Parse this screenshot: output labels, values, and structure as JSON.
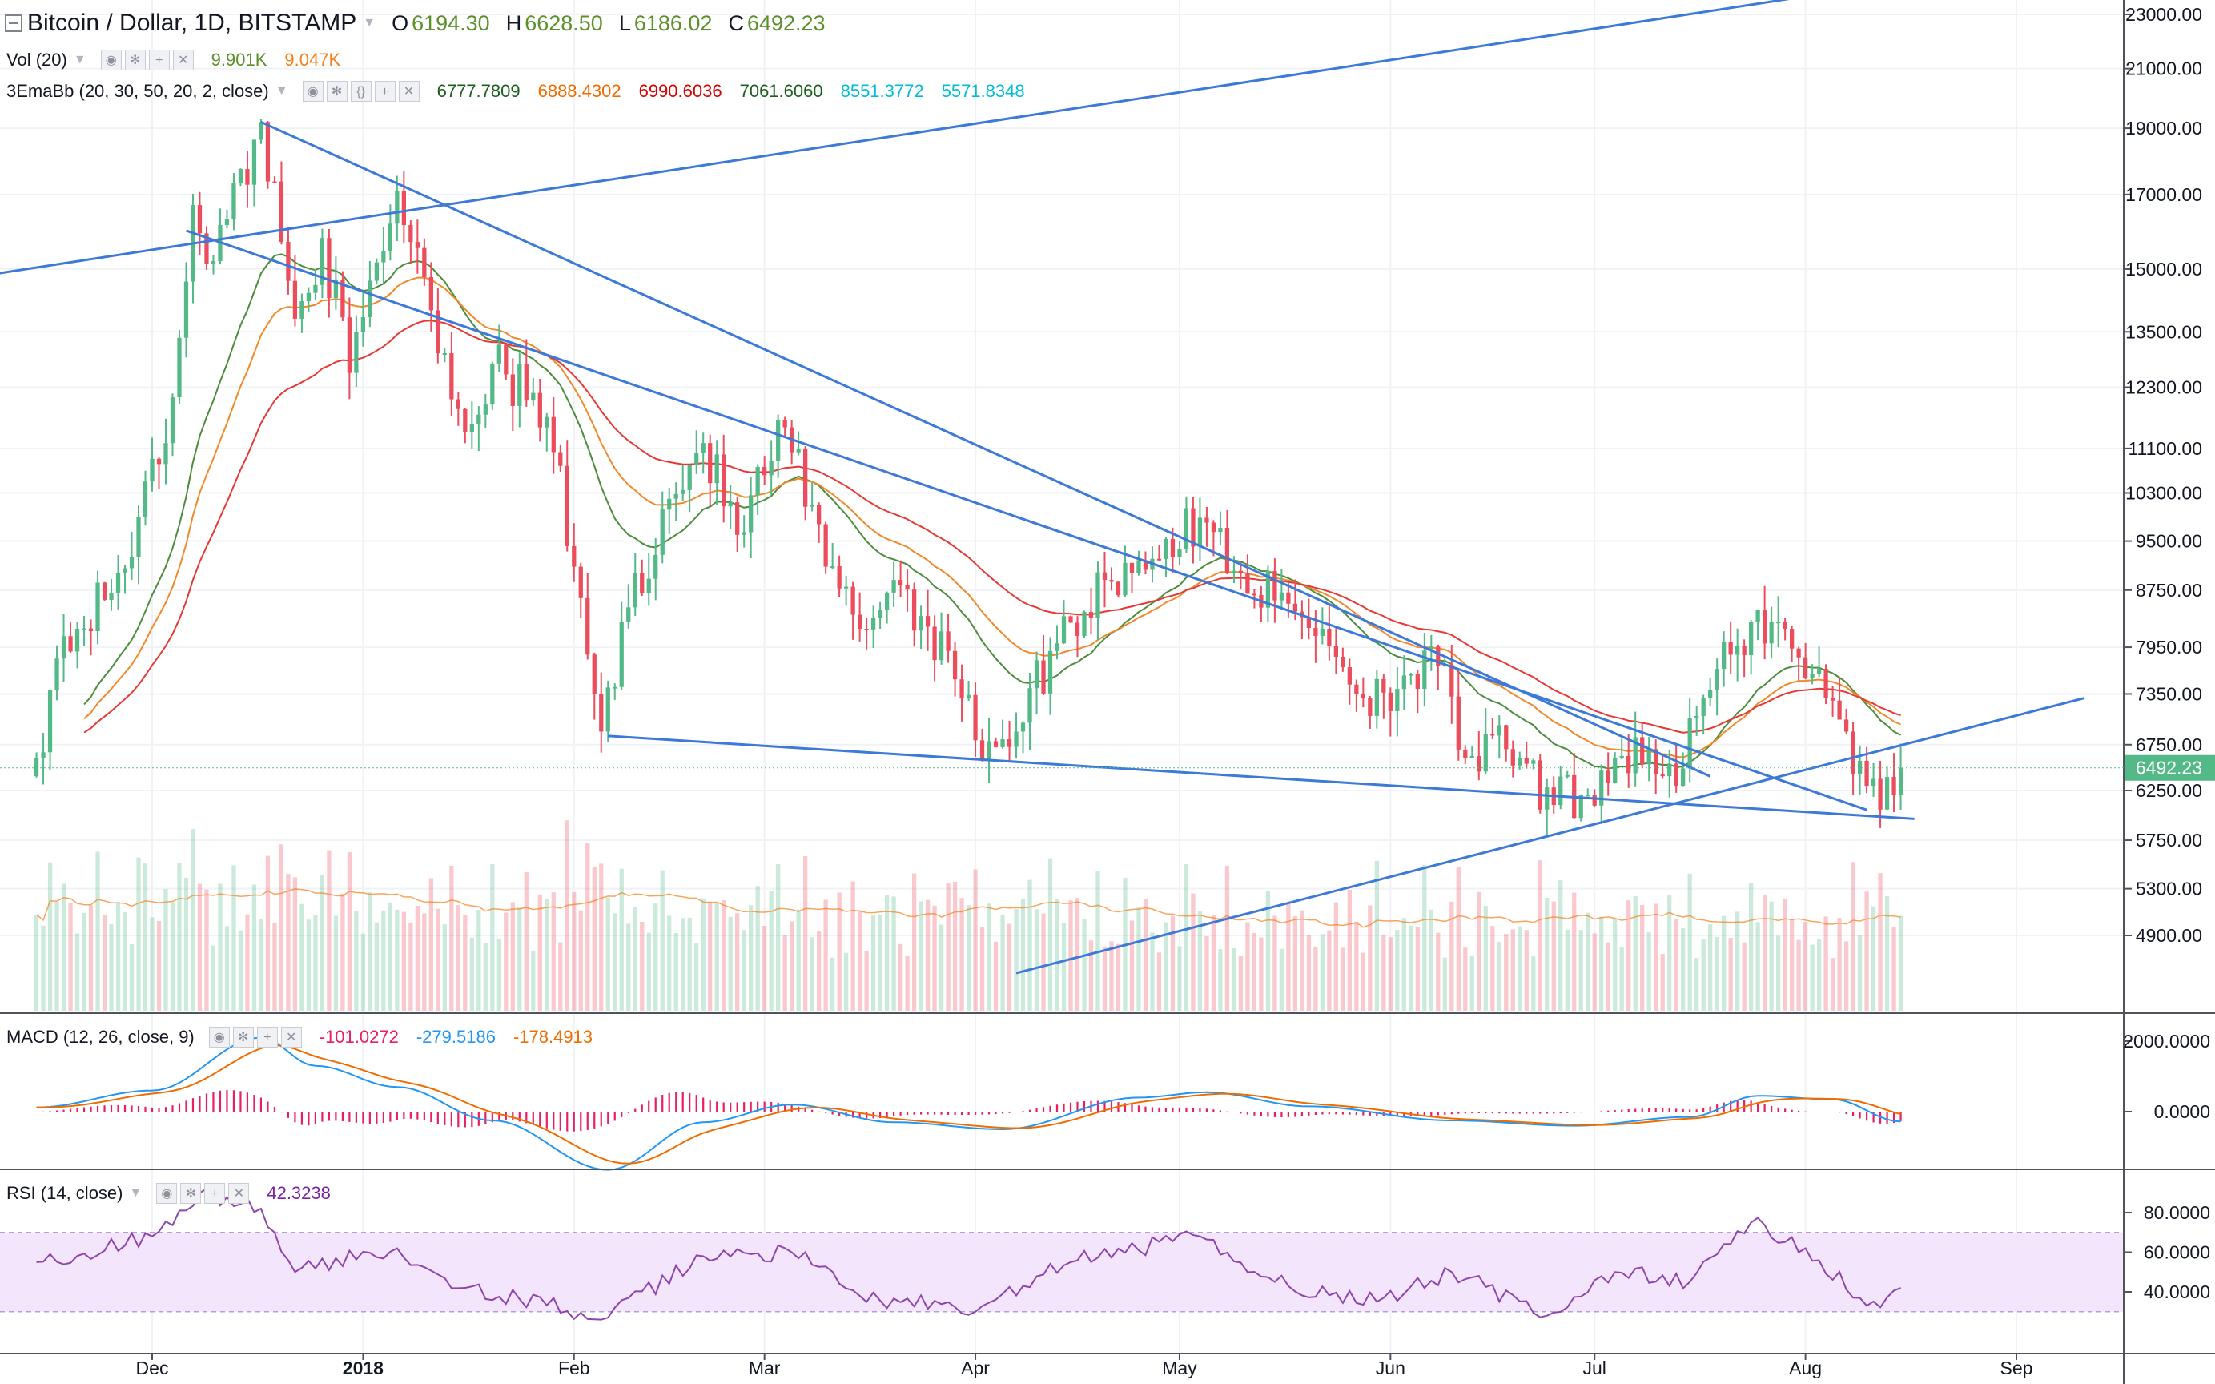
{
  "header": {
    "title": "Bitcoin / Dollar, 1D, BITSTAMP",
    "ohlc": [
      {
        "k": "O",
        "v": "6194.30"
      },
      {
        "k": "H",
        "v": "6628.50"
      },
      {
        "k": "L",
        "v": "6186.02"
      },
      {
        "k": "C",
        "v": "6492.23"
      }
    ]
  },
  "indicators": {
    "vol": {
      "label": "Vol (20)",
      "values": [
        {
          "text": "9.901K",
          "color": "#5d8f2a"
        },
        {
          "text": "9.047K",
          "color": "#f57f17"
        }
      ]
    },
    "ema": {
      "label": "3EmaBb (20, 30, 50, 20, 2, close)",
      "values": [
        {
          "text": "6777.7809",
          "color": "#1b5e20"
        },
        {
          "text": "6888.4302",
          "color": "#ef6c00"
        },
        {
          "text": "6990.6036",
          "color": "#d50000"
        },
        {
          "text": "7061.6060",
          "color": "#1b5e20"
        },
        {
          "text": "8551.3772",
          "color": "#00bcd4"
        },
        {
          "text": "5571.8348",
          "color": "#00bcd4"
        }
      ]
    },
    "macd": {
      "label": "MACD (12, 26, close, 9)",
      "values": [
        {
          "text": "-101.0272",
          "color": "#e91e63"
        },
        {
          "text": "-279.5186",
          "color": "#2196f3"
        },
        {
          "text": "-178.4913",
          "color": "#ef6c00"
        }
      ]
    },
    "rsi": {
      "label": "RSI (14, close)",
      "values": [
        {
          "text": "42.3238",
          "color": "#7b1fa2"
        }
      ]
    }
  },
  "colors": {
    "up": "#53b987",
    "down": "#eb4d5c",
    "trendline": "#3d79d6",
    "rsi_band": "#f3e5fc"
  },
  "icons": [
    "collapse-icon",
    "eye-icon",
    "gear-icon",
    "plus-icon",
    "close-icon",
    "chevron-down-icon"
  ],
  "chart_data": [
    {
      "type": "candlestick",
      "title": "Bitcoin / Dollar, 1D, BITSTAMP",
      "y_scale": "log",
      "ylim": [
        4500,
        23500
      ],
      "y_ticks": [
        "23000.00",
        "21000.00",
        "19000.00",
        "17000.00",
        "15000.00",
        "13500.00",
        "12300.00",
        "11100.00",
        "10300.00",
        "9500.00",
        "8750.00",
        "7950.00",
        "7350.00",
        "6750.00",
        "6250.00",
        "5750.00",
        "5300.00",
        "4900.00"
      ],
      "x_ticks": [
        "Dec",
        "2018",
        "Feb",
        "Mar",
        "Apr",
        "May",
        "Jun",
        "Jul",
        "Aug",
        "Sep"
      ],
      "last_price": "6492.23",
      "anchors": [
        {
          "d": "2017-11-14",
          "c": 6600
        },
        {
          "d": "2017-11-17",
          "c": 7800
        },
        {
          "d": "2017-11-20",
          "c": 8200
        },
        {
          "d": "2017-11-25",
          "c": 8700
        },
        {
          "d": "2017-11-29",
          "c": 9900
        },
        {
          "d": "2017-12-03",
          "c": 11200
        },
        {
          "d": "2017-12-07",
          "c": 16700
        },
        {
          "d": "2017-12-10",
          "c": 15200
        },
        {
          "d": "2017-12-17",
          "c": 19200
        },
        {
          "d": "2017-12-22",
          "c": 13800
        },
        {
          "d": "2017-12-26",
          "c": 15800
        },
        {
          "d": "2017-12-30",
          "c": 12600
        },
        {
          "d": "2018-01-06",
          "c": 17100
        },
        {
          "d": "2018-01-10",
          "c": 14800
        },
        {
          "d": "2018-01-16",
          "c": 11400
        },
        {
          "d": "2018-01-20",
          "c": 12800
        },
        {
          "d": "2018-01-28",
          "c": 11700
        },
        {
          "d": "2018-02-01",
          "c": 9100
        },
        {
          "d": "2018-02-05",
          "c": 6900
        },
        {
          "d": "2018-02-09",
          "c": 8500
        },
        {
          "d": "2018-02-15",
          "c": 10200
        },
        {
          "d": "2018-02-20",
          "c": 11200
        },
        {
          "d": "2018-02-25",
          "c": 9600
        },
        {
          "d": "2018-03-04",
          "c": 11500
        },
        {
          "d": "2018-03-10",
          "c": 9100
        },
        {
          "d": "2018-03-15",
          "c": 8200
        },
        {
          "d": "2018-03-20",
          "c": 8900
        },
        {
          "d": "2018-03-28",
          "c": 7900
        },
        {
          "d": "2018-04-01",
          "c": 6800
        },
        {
          "d": "2018-04-07",
          "c": 6900
        },
        {
          "d": "2018-04-12",
          "c": 7900
        },
        {
          "d": "2018-04-20",
          "c": 8900
        },
        {
          "d": "2018-04-25",
          "c": 9200
        },
        {
          "d": "2018-05-05",
          "c": 9800
        },
        {
          "d": "2018-05-10",
          "c": 9000
        },
        {
          "d": "2018-05-15",
          "c": 8600
        },
        {
          "d": "2018-05-22",
          "c": 8200
        },
        {
          "d": "2018-05-28",
          "c": 7300
        },
        {
          "d": "2018-06-04",
          "c": 7600
        },
        {
          "d": "2018-06-08",
          "c": 7700
        },
        {
          "d": "2018-06-12",
          "c": 6600
        },
        {
          "d": "2018-06-18",
          "c": 6700
        },
        {
          "d": "2018-06-25",
          "c": 6100
        },
        {
          "d": "2018-06-29",
          "c": 6200
        },
        {
          "d": "2018-07-04",
          "c": 6600
        },
        {
          "d": "2018-07-09",
          "c": 6700
        },
        {
          "d": "2018-07-13",
          "c": 6300
        },
        {
          "d": "2018-07-17",
          "c": 7300
        },
        {
          "d": "2018-07-24",
          "c": 8300
        },
        {
          "d": "2018-07-29",
          "c": 8200
        },
        {
          "d": "2018-08-02",
          "c": 7600
        },
        {
          "d": "2018-08-07",
          "c": 6900
        },
        {
          "d": "2018-08-10",
          "c": 6300
        },
        {
          "d": "2018-08-14",
          "c": 6200
        },
        {
          "d": "2018-08-15",
          "c": 6492
        }
      ],
      "trendlines": [
        {
          "from": {
            "d": "2017-11-01",
            "p": 14700
          },
          "to": {
            "d": "2018-08-08",
            "p": 24000
          }
        },
        {
          "from": {
            "d": "2017-12-06",
            "p": 16000
          },
          "to": {
            "d": "2018-08-10",
            "p": 6050
          }
        },
        {
          "from": {
            "d": "2017-12-17",
            "p": 19200
          },
          "to": {
            "d": "2018-07-18",
            "p": 6400
          }
        },
        {
          "from": {
            "d": "2018-02-06",
            "p": 6850
          },
          "to": {
            "d": "2018-08-17",
            "p": 5960
          }
        },
        {
          "from": {
            "d": "2018-04-07",
            "p": 4600
          },
          "to": {
            "d": "2018-09-11",
            "p": 7300
          }
        }
      ]
    },
    {
      "type": "line",
      "title": "MACD (12, 26, close, 9)",
      "y_ticks": [
        "2000.0000",
        "0.0000"
      ],
      "ylim": [
        -1800,
        2800
      ],
      "anchors_macd": [
        {
          "d": "2017-11-14",
          "v": 120
        },
        {
          "d": "2017-12-01",
          "v": 600
        },
        {
          "d": "2017-12-17",
          "v": 2100
        },
        {
          "d": "2017-12-25",
          "v": 1300
        },
        {
          "d": "2018-01-06",
          "v": 700
        },
        {
          "d": "2018-01-20",
          "v": -250
        },
        {
          "d": "2018-02-06",
          "v": -1650
        },
        {
          "d": "2018-02-20",
          "v": -300
        },
        {
          "d": "2018-03-05",
          "v": 200
        },
        {
          "d": "2018-03-20",
          "v": -300
        },
        {
          "d": "2018-04-05",
          "v": -500
        },
        {
          "d": "2018-04-25",
          "v": 400
        },
        {
          "d": "2018-05-05",
          "v": 550
        },
        {
          "d": "2018-05-20",
          "v": 150
        },
        {
          "d": "2018-06-10",
          "v": -250
        },
        {
          "d": "2018-06-28",
          "v": -400
        },
        {
          "d": "2018-07-15",
          "v": -150
        },
        {
          "d": "2018-07-25",
          "v": 450
        },
        {
          "d": "2018-08-05",
          "v": 350
        },
        {
          "d": "2018-08-15",
          "v": -280
        }
      ]
    },
    {
      "type": "line",
      "title": "RSI (14, close)",
      "y_ticks": [
        "80.0000",
        "60.0000",
        "40.0000"
      ],
      "ylim": [
        25,
        95
      ],
      "band": [
        30,
        70
      ],
      "anchors": [
        {
          "d": "2017-11-14",
          "v": 55
        },
        {
          "d": "2017-12-01",
          "v": 68
        },
        {
          "d": "2017-12-08",
          "v": 90
        },
        {
          "d": "2017-12-17",
          "v": 82
        },
        {
          "d": "2017-12-22",
          "v": 50
        },
        {
          "d": "2018-01-06",
          "v": 62
        },
        {
          "d": "2018-01-16",
          "v": 42
        },
        {
          "d": "2018-02-06",
          "v": 27
        },
        {
          "d": "2018-02-20",
          "v": 58
        },
        {
          "d": "2018-03-05",
          "v": 60
        },
        {
          "d": "2018-03-15",
          "v": 38
        },
        {
          "d": "2018-04-01",
          "v": 30
        },
        {
          "d": "2018-04-15",
          "v": 55
        },
        {
          "d": "2018-05-04",
          "v": 68
        },
        {
          "d": "2018-05-15",
          "v": 45
        },
        {
          "d": "2018-05-30",
          "v": 35
        },
        {
          "d": "2018-06-10",
          "v": 50
        },
        {
          "d": "2018-06-24",
          "v": 28
        },
        {
          "d": "2018-07-04",
          "v": 50
        },
        {
          "d": "2018-07-15",
          "v": 45
        },
        {
          "d": "2018-07-24",
          "v": 75
        },
        {
          "d": "2018-08-01",
          "v": 62
        },
        {
          "d": "2018-08-10",
          "v": 33
        },
        {
          "d": "2018-08-15",
          "v": 42
        }
      ]
    }
  ]
}
